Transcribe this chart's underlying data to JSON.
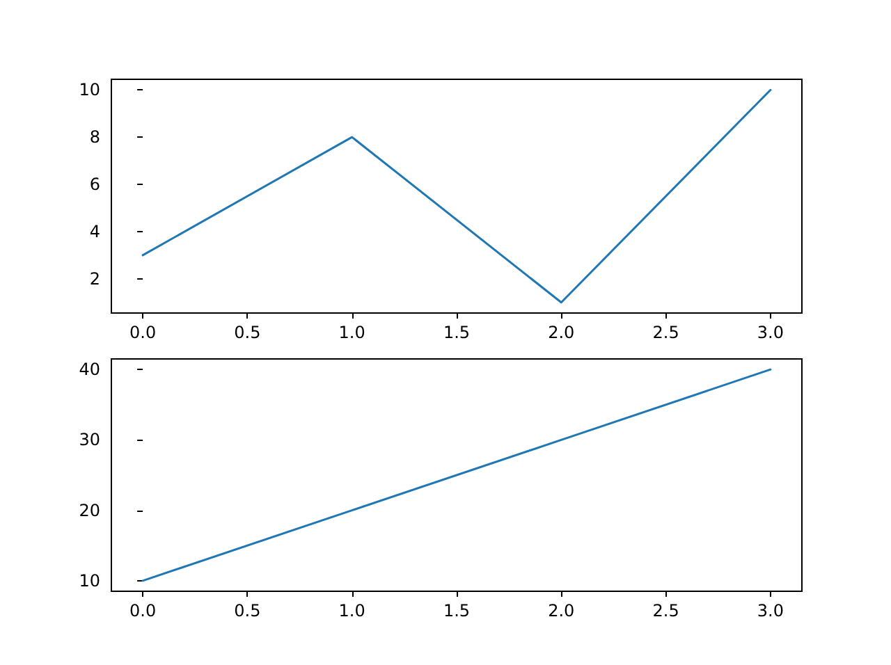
{
  "chart_data": [
    {
      "type": "line",
      "x": [
        0,
        1,
        2,
        3
      ],
      "series": [
        {
          "color": "#1f77b4",
          "values": [
            3,
            8,
            1,
            10
          ]
        }
      ],
      "xlim": [
        -0.15,
        3.15
      ],
      "ylim": [
        0.55,
        10.45
      ],
      "xticks": [
        {
          "value": 0,
          "label": "0.0"
        },
        {
          "value": 0.5,
          "label": "0.5"
        },
        {
          "value": 1,
          "label": "1.0"
        },
        {
          "value": 1.5,
          "label": "1.5"
        },
        {
          "value": 2,
          "label": "2.0"
        },
        {
          "value": 2.5,
          "label": "2.5"
        },
        {
          "value": 3,
          "label": "3.0"
        }
      ],
      "yticks": [
        2,
        4,
        6,
        8,
        10
      ]
    },
    {
      "type": "line",
      "x": [
        0,
        1,
        2,
        3
      ],
      "series": [
        {
          "color": "#1f77b4",
          "values": [
            10,
            20,
            30,
            40
          ]
        }
      ],
      "xlim": [
        -0.15,
        3.15
      ],
      "ylim": [
        8.5,
        41.5
      ],
      "xticks": [
        {
          "value": 0,
          "label": "0.0"
        },
        {
          "value": 0.5,
          "label": "0.5"
        },
        {
          "value": 1,
          "label": "1.0"
        },
        {
          "value": 1.5,
          "label": "1.5"
        },
        {
          "value": 2,
          "label": "2.0"
        },
        {
          "value": 2.5,
          "label": "2.5"
        },
        {
          "value": 3,
          "label": "3.0"
        }
      ],
      "yticks": [
        10,
        20,
        30,
        40
      ]
    }
  ]
}
